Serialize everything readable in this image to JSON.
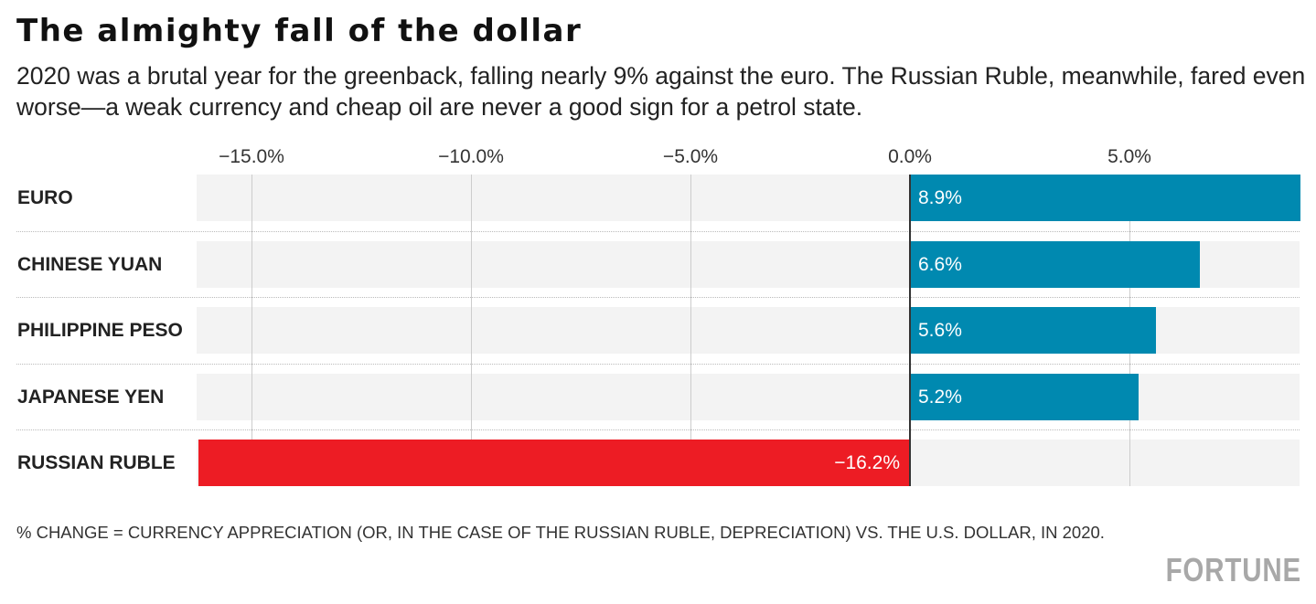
{
  "chart_data": {
    "type": "bar",
    "orientation": "horizontal",
    "title": "The almighty fall of the dollar",
    "subtitle": "2020 was a brutal year for the greenback, falling nearly 9% against the euro. The Russian Ruble, meanwhile, fared even worse—a weak currency and cheap oil are never a good sign for a petrol state.",
    "categories": [
      "EURO",
      "CHINESE YUAN",
      "PHILIPPINE PESO",
      "JAPANESE YEN",
      "RUSSIAN RUBLE"
    ],
    "values": [
      8.9,
      6.6,
      5.6,
      5.2,
      -16.2
    ],
    "value_labels": [
      "8.9%",
      "6.6%",
      "5.6%",
      "5.2%",
      "−16.2%"
    ],
    "xlim": [
      -16.25,
      8.875
    ],
    "xticks": [
      -15,
      -10,
      -5,
      0,
      5
    ],
    "xtick_labels": [
      "−15.0%",
      "−10.0%",
      "−5.0%",
      "0.0%",
      "5.0%"
    ],
    "grid": true,
    "colors": {
      "positive": "#0089b0",
      "negative": "#ed1c24",
      "row_background": "#f3f3f3"
    },
    "note": "% CHANGE = CURRENCY APPRECIATION (OR, IN THE CASE OF THE RUSSIAN RUBLE, DEPRECIATION) VS. THE U.S. DOLLAR, IN 2020."
  },
  "brand": "FORTUNE"
}
